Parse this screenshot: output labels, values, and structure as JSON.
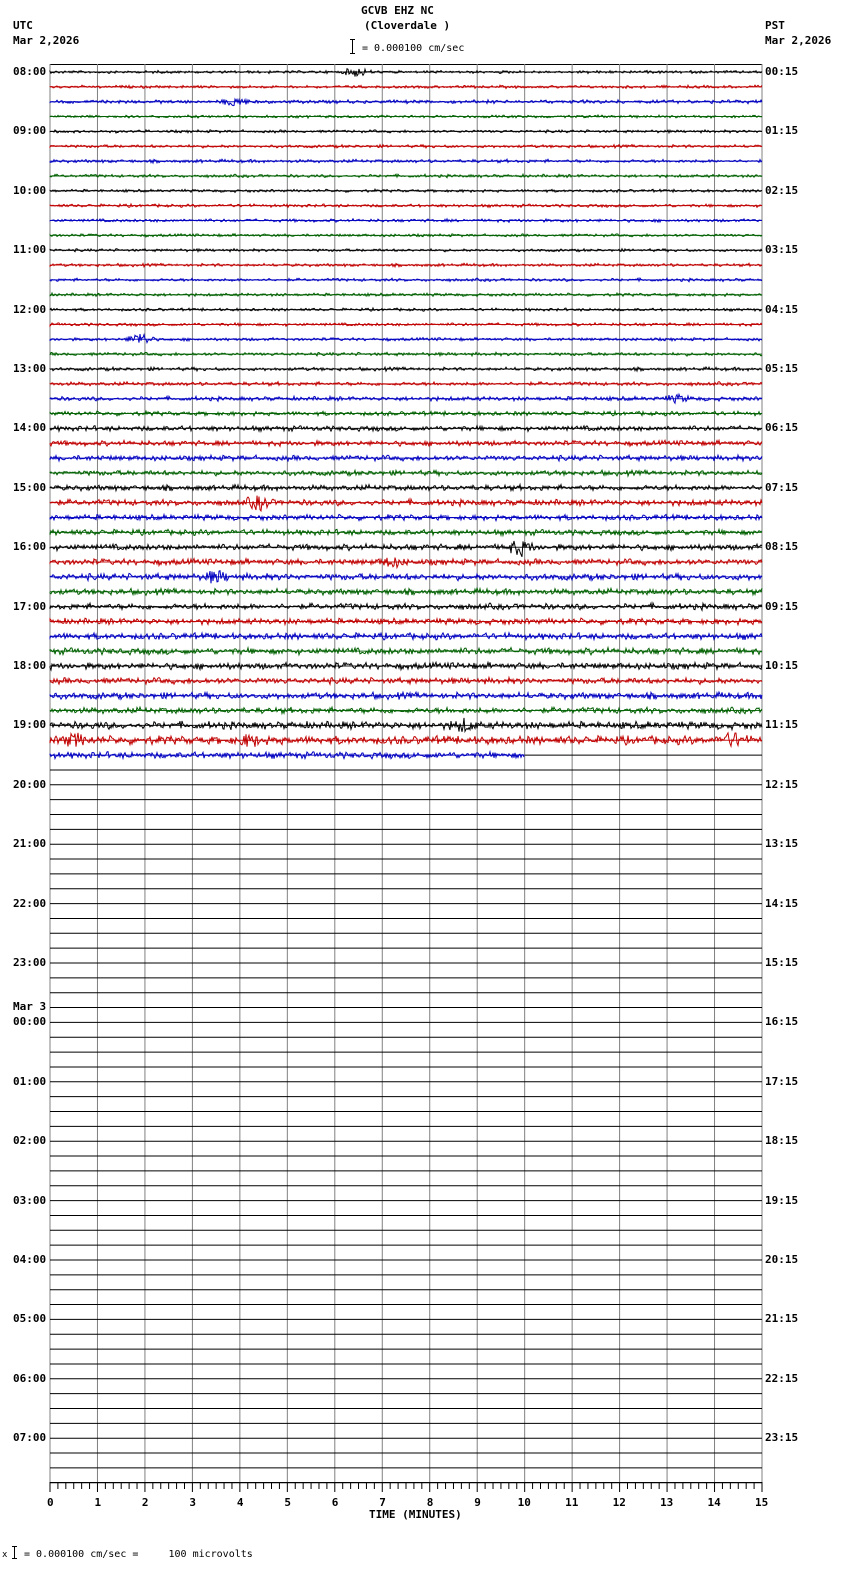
{
  "header": {
    "station": "GCVB EHZ NC",
    "location": "(Cloverdale )",
    "scale_label": "= 0.000100 cm/sec",
    "left_tz": "UTC",
    "left_date": "Mar 2,2026",
    "right_tz": "PST",
    "right_date": "Mar 2,2026"
  },
  "footer": {
    "scale_text": "= 0.000100 cm/sec =     100 microvolts",
    "marker": "x"
  },
  "chart_data": {
    "type": "line",
    "title": "GCVB EHZ NC (Cloverdale )",
    "subtitle": "Helicorder seismogram, 24 hours, 15-minute traces",
    "xlabel": "TIME (MINUTES)",
    "ylabel": "",
    "x_ticks": [
      "0",
      "1",
      "2",
      "3",
      "4",
      "5",
      "6",
      "7",
      "8",
      "9",
      "10",
      "11",
      "12",
      "13",
      "14",
      "15"
    ],
    "xlim": [
      0,
      15
    ],
    "grid": true,
    "trace_colors": [
      "#000000",
      "#c00000",
      "#0000c0",
      "#006000"
    ],
    "left_labels": [
      {
        "row": 0,
        "text": "08:00"
      },
      {
        "row": 4,
        "text": "09:00"
      },
      {
        "row": 8,
        "text": "10:00"
      },
      {
        "row": 12,
        "text": "11:00"
      },
      {
        "row": 16,
        "text": "12:00"
      },
      {
        "row": 20,
        "text": "13:00"
      },
      {
        "row": 24,
        "text": "14:00"
      },
      {
        "row": 28,
        "text": "15:00"
      },
      {
        "row": 32,
        "text": "16:00"
      },
      {
        "row": 36,
        "text": "17:00"
      },
      {
        "row": 40,
        "text": "18:00"
      },
      {
        "row": 44,
        "text": "19:00"
      },
      {
        "row": 48,
        "text": "20:00"
      },
      {
        "row": 52,
        "text": "21:00"
      },
      {
        "row": 56,
        "text": "22:00"
      },
      {
        "row": 60,
        "text": "23:00"
      },
      {
        "row": 64,
        "text": "00:00",
        "date": "Mar 3"
      },
      {
        "row": 68,
        "text": "01:00"
      },
      {
        "row": 72,
        "text": "02:00"
      },
      {
        "row": 76,
        "text": "03:00"
      },
      {
        "row": 80,
        "text": "04:00"
      },
      {
        "row": 84,
        "text": "05:00"
      },
      {
        "row": 88,
        "text": "06:00"
      },
      {
        "row": 92,
        "text": "07:00"
      }
    ],
    "right_labels": [
      "00:15",
      "01:15",
      "02:15",
      "03:15",
      "04:15",
      "05:15",
      "06:15",
      "07:15",
      "08:15",
      "09:15",
      "10:15",
      "11:15",
      "12:15",
      "13:15",
      "14:15",
      "15:15",
      "16:15",
      "17:15",
      "18:15",
      "19:15",
      "20:15",
      "21:15",
      "22:15",
      "23:15"
    ],
    "rows_total": 96,
    "rows_with_data": 47,
    "last_row_end_minute": 10.0,
    "row_amplitudes": [
      1.2,
      1.2,
      1.5,
      1.2,
      1.2,
      1.3,
      1.4,
      1.3,
      1.2,
      1.3,
      1.3,
      1.2,
      1.2,
      1.3,
      1.3,
      1.3,
      1.2,
      1.3,
      1.3,
      1.4,
      1.5,
      1.6,
      1.8,
      1.8,
      2.2,
      2.2,
      2.3,
      2.2,
      2.4,
      2.6,
      2.4,
      2.4,
      2.6,
      2.6,
      2.8,
      2.6,
      2.6,
      2.6,
      2.8,
      2.8,
      2.8,
      2.6,
      2.8,
      2.6,
      3.2,
      3.6,
      2.8
    ],
    "events": [
      {
        "row": 0,
        "minute": 6.45,
        "amp": 4
      },
      {
        "row": 2,
        "minute": 3.9,
        "amp": 4
      },
      {
        "row": 18,
        "minute": 1.9,
        "amp": 6
      },
      {
        "row": 22,
        "minute": 13.2,
        "amp": 3
      },
      {
        "row": 29,
        "minute": 4.4,
        "amp": 6
      },
      {
        "row": 32,
        "minute": 9.9,
        "amp": 7
      },
      {
        "row": 33,
        "minute": 7.2,
        "amp": 4
      },
      {
        "row": 34,
        "minute": 3.5,
        "amp": 5
      },
      {
        "row": 45,
        "minute": 0.5,
        "amp": 5
      },
      {
        "row": 45,
        "minute": 4.2,
        "amp": 4
      },
      {
        "row": 45,
        "minute": 14.4,
        "amp": 5
      },
      {
        "row": 44,
        "minute": 8.7,
        "amp": 5
      }
    ]
  }
}
